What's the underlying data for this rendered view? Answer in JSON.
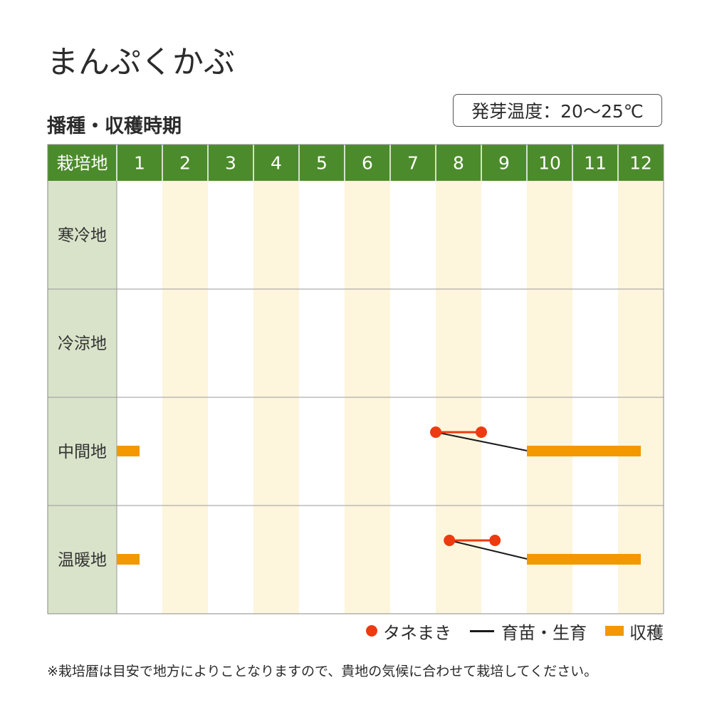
{
  "product_title": "まんぷくかぶ",
  "section_title": "播種・収穫時期",
  "germination_temp": "発芽温度：20～25℃",
  "legend": {
    "sowing": "タネまき",
    "growing": "育苗・生育",
    "harvest": "収穫"
  },
  "note": "※栽培暦は目安で地方によりことなりますので、貴地の気候に合わせて栽培してください。",
  "colors": {
    "header_bg": "#4c8b2b",
    "region_bg": "#d9e3c9",
    "alt_column": "#fdf5dc",
    "sowing": "#ee3a10",
    "growing": "#1a1a1a",
    "harvest": "#f39800"
  },
  "chart_data": {
    "type": "table",
    "header_label": "栽培地",
    "months": [
      "1",
      "2",
      "3",
      "4",
      "5",
      "6",
      "7",
      "8",
      "9",
      "10",
      "11",
      "12"
    ],
    "regions": [
      {
        "name": "寒冷地",
        "sowing": null,
        "growing": null,
        "harvest": []
      },
      {
        "name": "冷涼地",
        "sowing": null,
        "growing": null,
        "harvest": []
      },
      {
        "name": "中間地",
        "sowing": [
          8.0,
          9.0
        ],
        "growing": [
          8.0,
          10.0
        ],
        "harvest": [
          [
            1.0,
            1.5
          ],
          [
            10.0,
            12.5
          ]
        ]
      },
      {
        "name": "温暖地",
        "sowing": [
          8.3,
          9.3
        ],
        "growing": [
          8.3,
          10.0
        ],
        "harvest": [
          [
            1.0,
            1.5
          ],
          [
            10.0,
            12.5
          ]
        ]
      }
    ]
  }
}
